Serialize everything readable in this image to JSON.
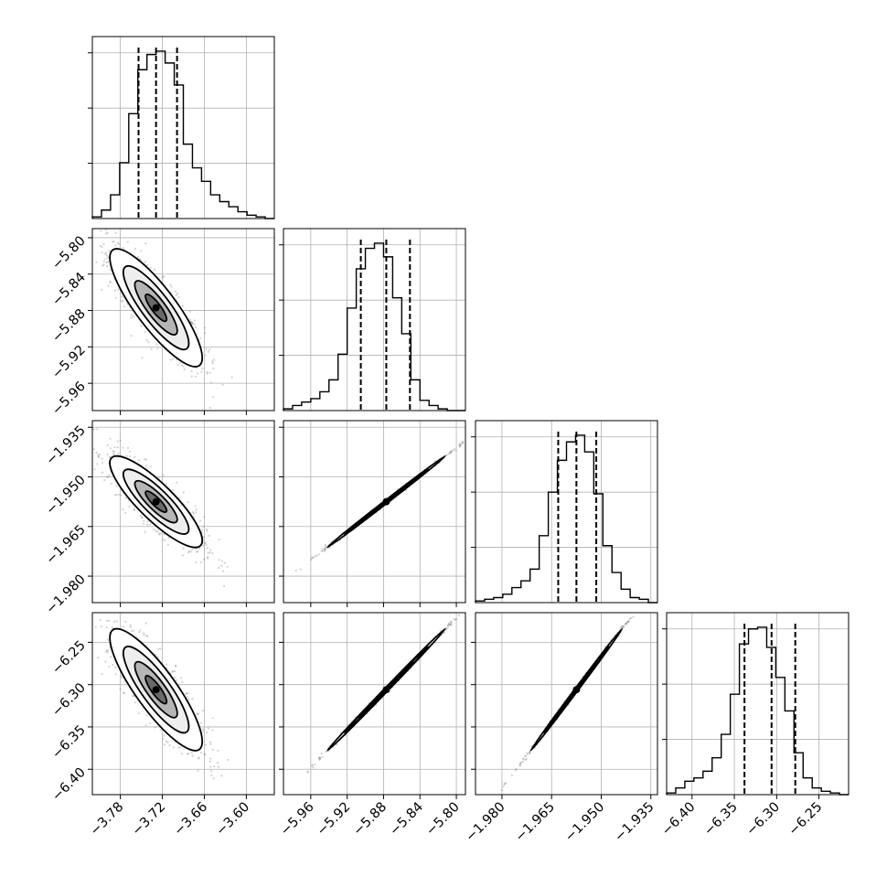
{
  "chart_data": {
    "type": "corner",
    "parameters": [
      {
        "range": [
          -3.82,
          -3.56
        ],
        "ticks": [
          -3.78,
          -3.72,
          -3.66,
          -3.6
        ],
        "tick_labels": [
          "−3.78",
          "−3.72",
          "−3.66",
          "−3.60"
        ],
        "quantiles": [
          -3.754,
          -3.729,
          -3.699
        ],
        "hist": [
          1,
          5,
          14,
          33,
          62,
          88,
          97,
          99,
          92,
          79,
          44,
          30,
          22,
          14,
          10,
          7,
          4,
          2,
          1,
          0
        ]
      },
      {
        "range": [
          -5.99,
          -5.79
        ],
        "ticks": [
          -5.96,
          -5.92,
          -5.88,
          -5.84,
          -5.8
        ],
        "tick_labels": [
          "−5.96",
          "−5.92",
          "−5.88",
          "−5.84",
          "−5.80"
        ],
        "quantiles": [
          -5.905,
          -5.877,
          -5.851
        ],
        "hist": [
          1,
          3,
          5,
          7,
          11,
          18,
          33,
          60,
          83,
          95,
          98,
          90,
          66,
          45,
          18,
          6,
          3,
          1,
          0,
          0
        ]
      },
      {
        "range": [
          -1.988,
          -1.933
        ],
        "ticks": [
          -1.98,
          -1.965,
          -1.95,
          -1.935
        ],
        "tick_labels": [
          "−1.980",
          "−1.965",
          "−1.950",
          "−1.935"
        ],
        "quantiles": [
          -1.963,
          -1.9575,
          -1.9515
        ],
        "hist": [
          1,
          2,
          3,
          5,
          9,
          13,
          20,
          40,
          66,
          85,
          96,
          100,
          90,
          65,
          34,
          18,
          8,
          3,
          2,
          0
        ]
      },
      {
        "range": [
          -6.43,
          -6.215
        ],
        "ticks": [
          -6.4,
          -6.35,
          -6.3,
          -6.25
        ],
        "tick_labels": [
          "−6.40",
          "−6.35",
          "−6.30",
          "−6.25"
        ],
        "quantiles": [
          -6.338,
          -6.306,
          -6.278
        ],
        "hist": [
          1,
          4,
          8,
          10,
          14,
          22,
          36,
          60,
          90,
          99,
          100,
          88,
          70,
          50,
          25,
          10,
          4,
          2,
          1,
          0
        ]
      }
    ],
    "correlation": [
      [
        1.0,
        -0.85,
        -0.85,
        -0.85
      ],
      [
        -0.85,
        1.0,
        0.999,
        0.999
      ],
      [
        -0.85,
        0.999,
        1.0,
        0.999
      ],
      [
        -0.85,
        0.999,
        0.999,
        1.0
      ]
    ],
    "colors": {
      "points": "#7f7f7f",
      "density": "#000000",
      "grid": "#b0b0b0",
      "quantile_line": "#000000"
    },
    "grid": true
  }
}
